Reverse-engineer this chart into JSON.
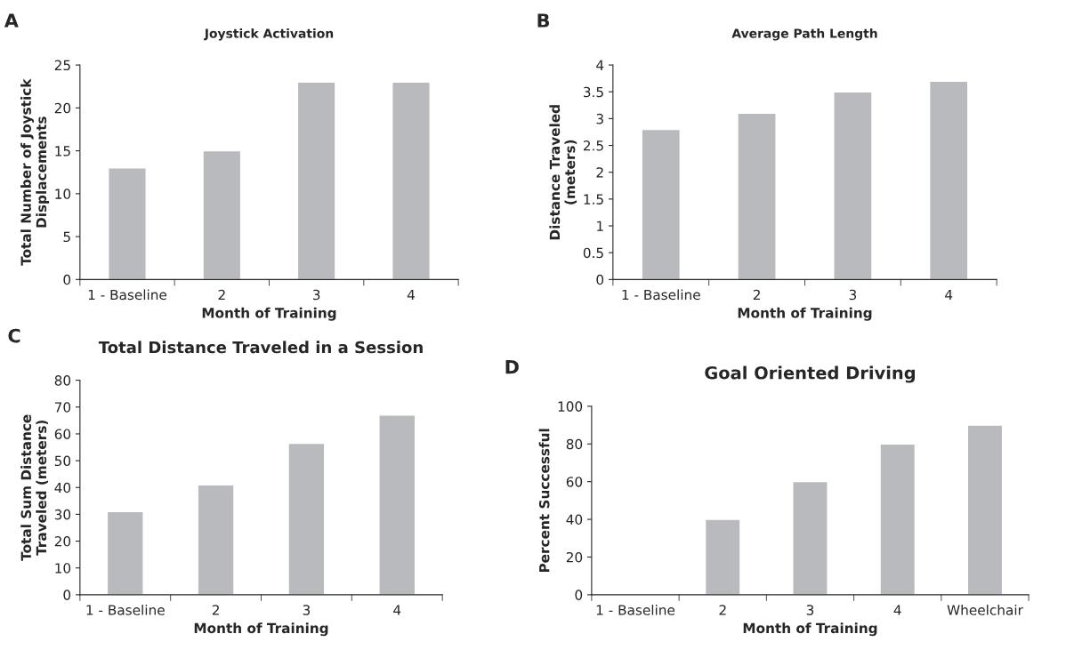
{
  "chart_data": [
    {
      "type": "bar",
      "title": "Joystick Activation",
      "xlabel": "Month of Training",
      "ylabel": "Total Number of Joystick\nDisplacements",
      "annotations": [
        "A"
      ],
      "categories": [
        "1 - Baseline",
        "2",
        "3",
        "4"
      ],
      "values": [
        13,
        15,
        23,
        23
      ],
      "color": "#b9babe",
      "ylim": [
        0,
        25
      ],
      "yticks": [
        0,
        5,
        10,
        15,
        20,
        25
      ],
      "grid": false
    },
    {
      "type": "bar",
      "title": "Average Path Length",
      "xlabel": "Month of Training",
      "ylabel": "Distance Traveled\n(meters)",
      "annotations": [
        "B"
      ],
      "categories": [
        "1 - Baseline",
        "2",
        "3",
        "4"
      ],
      "values": [
        2.8,
        3.1,
        3.5,
        3.7
      ],
      "color": "#b9babe",
      "ylim": [
        0,
        4
      ],
      "yticks": [
        0,
        0.5,
        1,
        1.5,
        2,
        2.5,
        3,
        3.5,
        4
      ],
      "grid": false
    },
    {
      "type": "bar",
      "title": "Total Distance Traveled in a Session",
      "xlabel": "Month of Training",
      "ylabel": "Total Sum Distance\nTraveled (meters)",
      "annotations": [
        "C"
      ],
      "categories": [
        "1 - Baseline",
        "2",
        "3",
        "4"
      ],
      "values": [
        31,
        41,
        56.5,
        67
      ],
      "color": "#b9babe",
      "ylim": [
        0,
        80
      ],
      "yticks": [
        0,
        10,
        20,
        30,
        40,
        50,
        60,
        70,
        80
      ],
      "grid": false
    },
    {
      "type": "bar",
      "title": "Goal Oriented Driving",
      "xlabel": "Month of Training",
      "ylabel": "Percent Successful",
      "annotations": [
        "D"
      ],
      "categories": [
        "1 - Baseline",
        "2",
        "3",
        "4",
        "Wheelchair"
      ],
      "values": [
        null,
        40,
        60,
        80,
        90
      ],
      "color": "#b9babe",
      "ylim": [
        0,
        100
      ],
      "yticks": [
        0,
        20,
        40,
        60,
        80,
        100
      ],
      "grid": false
    }
  ]
}
